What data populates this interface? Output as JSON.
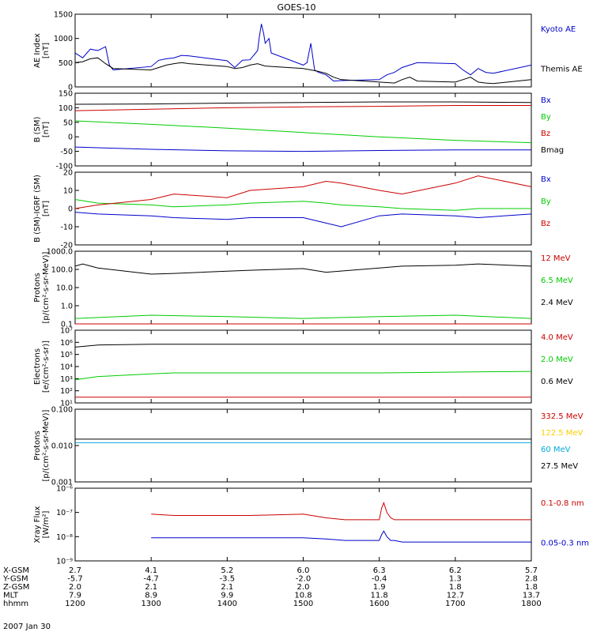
{
  "title": "GOES-10",
  "date_label": "2007 Jan 30",
  "ephemeris": {
    "rows": [
      {
        "label": "X-GSM",
        "values": [
          "2.7",
          "4.1",
          "5.2",
          "6.0",
          "6.3",
          "6.2",
          "5.7"
        ]
      },
      {
        "label": "Y-GSM",
        "values": [
          "-5.7",
          "-4.7",
          "-3.5",
          "-2.0",
          "-0.4",
          "1.3",
          "2.8"
        ]
      },
      {
        "label": "Z-GSM",
        "values": [
          "2.0",
          "2.1",
          "2.1",
          "2.0",
          "1.9",
          "1.8",
          "1.8"
        ]
      },
      {
        "label": "MLT",
        "values": [
          "7.9",
          "8.9",
          "9.9",
          "10.8",
          "11.8",
          "12.7",
          "13.7"
        ]
      },
      {
        "label": "hhmm",
        "values": [
          "1200",
          "1300",
          "1400",
          "1500",
          "1600",
          "1700",
          "1800"
        ]
      }
    ]
  },
  "chart_data": [
    {
      "type": "line",
      "ylabel": "AE Index\n[nT]",
      "ylim": [
        0,
        1500
      ],
      "yscale": "linear",
      "yticks": [
        "0",
        "500",
        "1000",
        "1500"
      ],
      "xlim": [
        1200,
        1800
      ],
      "series": [
        {
          "name": "Kyoto AE",
          "color": "#0000cc",
          "x": [
            1200,
            1210,
            1220,
            1230,
            1240,
            1245,
            1250,
            1300,
            1310,
            1320,
            1330,
            1340,
            1350,
            1400,
            1410,
            1420,
            1430,
            1440,
            1442,
            1445,
            1448,
            1450,
            1455,
            1458,
            1500,
            1505,
            1510,
            1515,
            1520,
            1530,
            1540,
            1550,
            1600,
            1610,
            1620,
            1630,
            1640,
            1650,
            1700,
            1710,
            1720,
            1730,
            1740,
            1750,
            1800
          ],
          "y": [
            700,
            600,
            780,
            750,
            830,
            450,
            350,
            420,
            550,
            580,
            600,
            650,
            640,
            540,
            400,
            550,
            560,
            750,
            1000,
            1300,
            1100,
            900,
            1000,
            700,
            450,
            500,
            900,
            350,
            300,
            250,
            120,
            130,
            150,
            250,
            300,
            400,
            450,
            500,
            480,
            350,
            250,
            380,
            300,
            280,
            450
          ]
        },
        {
          "name": "Themis AE",
          "color": "#000000",
          "x": [
            1200,
            1210,
            1220,
            1230,
            1240,
            1250,
            1300,
            1310,
            1320,
            1330,
            1340,
            1350,
            1400,
            1410,
            1420,
            1430,
            1440,
            1450,
            1500,
            1510,
            1520,
            1530,
            1540,
            1550,
            1600,
            1610,
            1620,
            1630,
            1640,
            1650,
            1700,
            1710,
            1720,
            1730,
            1740,
            1750,
            1800
          ],
          "y": [
            500,
            520,
            580,
            600,
            480,
            380,
            350,
            400,
            450,
            480,
            500,
            480,
            420,
            380,
            400,
            450,
            480,
            430,
            380,
            350,
            320,
            280,
            200,
            150,
            100,
            90,
            80,
            150,
            200,
            120,
            100,
            150,
            200,
            100,
            80,
            70,
            150
          ]
        }
      ]
    },
    {
      "type": "line",
      "ylabel": "B (SM)\n[nT]",
      "ylim": [
        -100,
        150
      ],
      "yscale": "linear",
      "yticks": [
        "-100",
        "-50",
        "0",
        "50",
        "100",
        "150"
      ],
      "xlim": [
        1200,
        1800
      ],
      "series": [
        {
          "name": "Bx",
          "color": "#0000cc",
          "x": [
            1200,
            1300,
            1400,
            1500,
            1600,
            1700,
            1800
          ],
          "y": [
            -35,
            -43,
            -48,
            -50,
            -47,
            -45,
            -45
          ]
        },
        {
          "name": "By",
          "color": "#00cc00",
          "x": [
            1200,
            1300,
            1400,
            1500,
            1600,
            1700,
            1800
          ],
          "y": [
            55,
            43,
            30,
            15,
            0,
            -12,
            -20
          ]
        },
        {
          "name": "Bz",
          "color": "#cc0000",
          "x": [
            1200,
            1300,
            1400,
            1500,
            1600,
            1700,
            1800
          ],
          "y": [
            90,
            95,
            100,
            103,
            105,
            108,
            108
          ]
        },
        {
          "name": "Bmag",
          "color": "#000000",
          "x": [
            1200,
            1300,
            1400,
            1500,
            1600,
            1700,
            1800
          ],
          "y": [
            112,
            113,
            116,
            118,
            120,
            120,
            118
          ]
        }
      ]
    },
    {
      "type": "line",
      "ylabel": "B (SM)-IGRF (SM)\n[nT]",
      "ylim": [
        -20,
        20
      ],
      "yscale": "linear",
      "yticks": [
        "-20",
        "-10",
        "0",
        "10",
        "20"
      ],
      "xlim": [
        1200,
        1800
      ],
      "series": [
        {
          "name": "Bx",
          "color": "#0000cc",
          "x": [
            1200,
            1230,
            1300,
            1330,
            1400,
            1430,
            1500,
            1530,
            1550,
            1600,
            1630,
            1700,
            1730,
            1800
          ],
          "y": [
            -2,
            -3,
            -4,
            -5,
            -6,
            -5,
            -5,
            -8,
            -10,
            -4,
            -3,
            -4,
            -5,
            -3
          ]
        },
        {
          "name": "By",
          "color": "#00cc00",
          "x": [
            1200,
            1230,
            1300,
            1330,
            1400,
            1430,
            1500,
            1530,
            1550,
            1600,
            1630,
            1700,
            1730,
            1800
          ],
          "y": [
            5,
            3,
            2,
            1,
            2,
            3,
            4,
            3,
            2,
            1,
            0,
            -1,
            0,
            0
          ]
        },
        {
          "name": "Bz",
          "color": "#cc0000",
          "x": [
            1200,
            1230,
            1300,
            1330,
            1400,
            1430,
            1500,
            1530,
            1550,
            1600,
            1630,
            1700,
            1730,
            1800
          ],
          "y": [
            0,
            2,
            5,
            8,
            6,
            10,
            12,
            15,
            14,
            10,
            8,
            14,
            18,
            12
          ]
        }
      ]
    },
    {
      "type": "line",
      "ylabel": "Protons\n[p/(cm²-s-sr-MeV)]",
      "ylim": [
        0.1,
        1000
      ],
      "yscale": "log",
      "yticks": [
        "0.1",
        "1.0",
        "10.0",
        "100.0",
        "1000.0"
      ],
      "xlim": [
        1200,
        1800
      ],
      "series": [
        {
          "name": "12 MeV",
          "color": "#cc0000",
          "x": [
            1200,
            1300,
            1400,
            1500,
            1600,
            1700,
            1800
          ],
          "y": [
            0.1,
            0.1,
            0.1,
            0.1,
            0.1,
            0.1,
            0.1
          ]
        },
        {
          "name": "6.5 MeV",
          "color": "#00cc00",
          "x": [
            1200,
            1300,
            1400,
            1500,
            1600,
            1700,
            1800
          ],
          "y": [
            0.2,
            0.3,
            0.25,
            0.2,
            0.25,
            0.3,
            0.2
          ]
        },
        {
          "name": "2.4 MeV",
          "color": "#000000",
          "x": [
            1200,
            1210,
            1230,
            1300,
            1330,
            1400,
            1430,
            1500,
            1530,
            1600,
            1630,
            1700,
            1730,
            1800
          ],
          "y": [
            150,
            200,
            120,
            55,
            60,
            80,
            90,
            110,
            70,
            120,
            150,
            170,
            200,
            150
          ]
        }
      ]
    },
    {
      "type": "line",
      "ylabel": "Electrons\n[e/(cm²-s-sr)]",
      "ylim": [
        10,
        10000000
      ],
      "yscale": "log",
      "yticks": [
        "10¹",
        "10²",
        "10³",
        "10⁴",
        "10⁵",
        "10⁶",
        "10⁷"
      ],
      "xlim": [
        1200,
        1800
      ],
      "series": [
        {
          "name": "4.0 MeV",
          "color": "#cc0000",
          "x": [
            1200,
            1300,
            1400,
            1500,
            1600,
            1700,
            1800
          ],
          "y": [
            30,
            30,
            30,
            30,
            30,
            30,
            30
          ]
        },
        {
          "name": "2.0 MeV",
          "color": "#00cc00",
          "x": [
            1200,
            1230,
            1300,
            1330,
            1400,
            1500,
            1600,
            1700,
            1800
          ],
          "y": [
            800,
            1500,
            2500,
            3000,
            3000,
            3000,
            3000,
            3500,
            4000
          ]
        },
        {
          "name": "0.6 MeV",
          "color": "#000000",
          "x": [
            1200,
            1230,
            1300,
            1400,
            1500,
            1600,
            1700,
            1800
          ],
          "y": [
            400000,
            600000,
            700000,
            700000,
            700000,
            700000,
            700000,
            700000
          ]
        }
      ]
    },
    {
      "type": "line",
      "ylabel": "Protons\n[p/(cm²-s-sr-MeV)]",
      "ylim": [
        0.001,
        0.1
      ],
      "yscale": "log",
      "yticks": [
        "0.001",
        "0.010",
        "0.100"
      ],
      "xlim": [
        1200,
        1800
      ],
      "series": [
        {
          "name": "332.5 MeV",
          "color": "#cc0000",
          "x": [],
          "y": []
        },
        {
          "name": "122.5 MeV",
          "color": "#ffcc00",
          "x": [],
          "y": []
        },
        {
          "name": "60 MeV",
          "color": "#00aadd",
          "x": [
            1200,
            1800
          ],
          "y": [
            0.012,
            0.012
          ]
        },
        {
          "name": "27.5 MeV",
          "color": "#000000",
          "x": [
            1200,
            1800
          ],
          "y": [
            0.015,
            0.015
          ]
        }
      ]
    },
    {
      "type": "line",
      "ylabel": "Xray Flux\n[W/m²]",
      "ylim": [
        1e-09,
        1e-06
      ],
      "yscale": "log",
      "yticks": [
        "10⁻⁹",
        "10⁻⁸",
        "10⁻⁷",
        "10⁻⁶"
      ],
      "xlim": [
        1200,
        1800
      ],
      "series": [
        {
          "name": "0.1-0.8 nm",
          "color": "#cc0000",
          "x": [
            1300,
            1330,
            1400,
            1430,
            1500,
            1530,
            1555,
            1600,
            1603,
            1606,
            1610,
            1615,
            1620,
            1630,
            1700,
            1730,
            1800
          ],
          "y": [
            8.5e-08,
            7.5e-08,
            7.5e-08,
            7.5e-08,
            8.5e-08,
            6e-08,
            5e-08,
            5e-08,
            1.5e-07,
            2.5e-07,
            1e-07,
            6e-08,
            5e-08,
            5e-08,
            5e-08,
            5e-08,
            5e-08
          ]
        },
        {
          "name": "0.05-0.3 nm",
          "color": "#0000cc",
          "x": [
            1300,
            1330,
            1400,
            1430,
            1500,
            1530,
            1555,
            1600,
            1603,
            1606,
            1610,
            1615,
            1620,
            1630,
            1700,
            1730,
            1800
          ],
          "y": [
            9e-09,
            9e-09,
            9e-09,
            9e-09,
            9e-09,
            8e-09,
            7e-09,
            7e-09,
            1.2e-08,
            1.7e-08,
            1e-08,
            7e-09,
            7e-09,
            6e-09,
            6e-09,
            6e-09,
            6e-09
          ]
        }
      ]
    }
  ]
}
